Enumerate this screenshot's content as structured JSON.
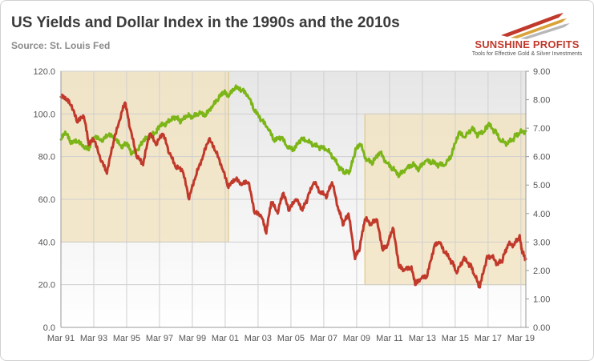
{
  "title": "US Yields and Dollar Index in the 1990s and the 2010s",
  "subtitle": "Source: St. Louis Fed",
  "logo": {
    "name": "SUNSHINE PROFITS",
    "tagline": "Tools for Effective Gold & Silver Investments"
  },
  "colors": {
    "dollar_index": "#7cb518",
    "yield_10y": "#c0392b",
    "highlight": "#f3e4c0",
    "grid": "#cfcfcf"
  },
  "chart_data": {
    "type": "line",
    "title": "US Yields and Dollar Index in the 1990s and the 2010s",
    "xlabel": "",
    "ylabel": "",
    "x_tick_labels": [
      "Mar 91",
      "Mar 93",
      "Mar 95",
      "Mar 97",
      "Mar 99",
      "Mar 01",
      "Mar 03",
      "Mar 05",
      "Mar 07",
      "Mar 09",
      "Mar 11",
      "Mar 13",
      "Mar 15",
      "Mar 17",
      "Mar 19"
    ],
    "x_range": [
      1991.0,
      2019.3
    ],
    "left_axis": {
      "ylim": [
        0,
        120
      ],
      "ticks": [
        "0.0",
        "20.0",
        "40.0",
        "60.0",
        "80.0",
        "100.0",
        "120.0"
      ]
    },
    "right_axis": {
      "ylim": [
        0,
        9
      ],
      "ticks": [
        "0.00",
        "1.00",
        "2.00",
        "3.00",
        "4.00",
        "5.00",
        "6.00",
        "7.00",
        "8.00",
        "9.00"
      ]
    },
    "grid": true,
    "legend": "none",
    "highlights": [
      {
        "x0": 1991.0,
        "x1": 2001.2,
        "y0_left": 40,
        "y1_left": 120
      },
      {
        "x0": 2009.5,
        "x1": 2019.3,
        "y0_left": 20,
        "y1_left": 100
      }
    ],
    "series": [
      {
        "key": "dollar_index",
        "axis": "left",
        "color": "#7cb518",
        "points": [
          [
            1991.0,
            88
          ],
          [
            1991.3,
            91
          ],
          [
            1991.6,
            86
          ],
          [
            1992.0,
            87
          ],
          [
            1992.4,
            84
          ],
          [
            1992.7,
            83
          ],
          [
            1993.0,
            89
          ],
          [
            1993.5,
            87
          ],
          [
            1993.9,
            90
          ],
          [
            1994.3,
            88
          ],
          [
            1994.7,
            84
          ],
          [
            1995.0,
            86
          ],
          [
            1995.3,
            81
          ],
          [
            1995.7,
            83
          ],
          [
            1996.0,
            87
          ],
          [
            1996.4,
            89
          ],
          [
            1996.8,
            91
          ],
          [
            1997.0,
            94
          ],
          [
            1997.4,
            95
          ],
          [
            1997.7,
            97
          ],
          [
            1998.0,
            98
          ],
          [
            1998.3,
            96
          ],
          [
            1998.7,
            99
          ],
          [
            1999.0,
            98
          ],
          [
            1999.4,
            100
          ],
          [
            1999.8,
            99
          ],
          [
            2000.2,
            103
          ],
          [
            2000.6,
            107
          ],
          [
            2000.9,
            110
          ],
          [
            2001.2,
            108
          ],
          [
            2001.6,
            112
          ],
          [
            2002.0,
            111
          ],
          [
            2002.4,
            108
          ],
          [
            2002.8,
            101
          ],
          [
            2003.2,
            97
          ],
          [
            2003.6,
            93
          ],
          [
            2004.0,
            87
          ],
          [
            2004.4,
            89
          ],
          [
            2004.8,
            84
          ],
          [
            2005.2,
            83
          ],
          [
            2005.6,
            88
          ],
          [
            2006.0,
            87
          ],
          [
            2006.4,
            85
          ],
          [
            2006.8,
            84
          ],
          [
            2007.2,
            83
          ],
          [
            2007.6,
            79
          ],
          [
            2008.0,
            74
          ],
          [
            2008.3,
            72
          ],
          [
            2008.6,
            73
          ],
          [
            2008.9,
            82
          ],
          [
            2009.2,
            86
          ],
          [
            2009.6,
            78
          ],
          [
            2010.0,
            77
          ],
          [
            2010.4,
            82
          ],
          [
            2010.8,
            77
          ],
          [
            2011.2,
            74
          ],
          [
            2011.6,
            71
          ],
          [
            2012.0,
            74
          ],
          [
            2012.4,
            76
          ],
          [
            2012.8,
            74
          ],
          [
            2013.2,
            78
          ],
          [
            2013.6,
            77
          ],
          [
            2014.0,
            76
          ],
          [
            2014.4,
            76
          ],
          [
            2014.8,
            81
          ],
          [
            2015.2,
            91
          ],
          [
            2015.6,
            89
          ],
          [
            2016.0,
            93
          ],
          [
            2016.4,
            90
          ],
          [
            2016.8,
            92
          ],
          [
            2017.0,
            95
          ],
          [
            2017.4,
            92
          ],
          [
            2017.8,
            87
          ],
          [
            2018.2,
            86
          ],
          [
            2018.6,
            89
          ],
          [
            2018.9,
            91
          ],
          [
            2019.3,
            92
          ]
        ]
      },
      {
        "key": "yield_10y",
        "axis": "right",
        "color": "#c0392b",
        "points": [
          [
            1991.0,
            8.1
          ],
          [
            1991.3,
            8.0
          ],
          [
            1991.6,
            7.8
          ],
          [
            1992.0,
            7.2
          ],
          [
            1992.4,
            7.4
          ],
          [
            1992.7,
            6.4
          ],
          [
            1993.0,
            6.6
          ],
          [
            1993.4,
            5.9
          ],
          [
            1993.8,
            5.4
          ],
          [
            1994.2,
            6.5
          ],
          [
            1994.6,
            7.3
          ],
          [
            1994.9,
            7.9
          ],
          [
            1995.2,
            7.0
          ],
          [
            1995.6,
            6.0
          ],
          [
            1996.0,
            5.7
          ],
          [
            1996.4,
            6.8
          ],
          [
            1996.8,
            6.4
          ],
          [
            1997.2,
            6.8
          ],
          [
            1997.6,
            6.1
          ],
          [
            1998.0,
            5.6
          ],
          [
            1998.4,
            5.5
          ],
          [
            1998.8,
            4.5
          ],
          [
            1999.2,
            5.3
          ],
          [
            1999.6,
            5.9
          ],
          [
            2000.0,
            6.6
          ],
          [
            2000.4,
            6.2
          ],
          [
            2000.8,
            5.6
          ],
          [
            2001.2,
            4.9
          ],
          [
            2001.6,
            5.2
          ],
          [
            2002.0,
            5.0
          ],
          [
            2002.4,
            5.1
          ],
          [
            2002.8,
            4.0
          ],
          [
            2003.2,
            3.9
          ],
          [
            2003.5,
            3.3
          ],
          [
            2003.8,
            4.4
          ],
          [
            2004.2,
            4.0
          ],
          [
            2004.5,
            4.7
          ],
          [
            2004.9,
            4.1
          ],
          [
            2005.3,
            4.5
          ],
          [
            2005.7,
            4.1
          ],
          [
            2006.0,
            4.5
          ],
          [
            2006.4,
            5.1
          ],
          [
            2006.8,
            4.7
          ],
          [
            2007.2,
            4.6
          ],
          [
            2007.5,
            5.1
          ],
          [
            2007.9,
            4.1
          ],
          [
            2008.2,
            3.6
          ],
          [
            2008.5,
            4.0
          ],
          [
            2008.9,
            2.4
          ],
          [
            2009.2,
            2.8
          ],
          [
            2009.5,
            3.8
          ],
          [
            2009.9,
            3.6
          ],
          [
            2010.2,
            3.8
          ],
          [
            2010.6,
            2.7
          ],
          [
            2010.9,
            2.9
          ],
          [
            2011.2,
            3.5
          ],
          [
            2011.6,
            2.1
          ],
          [
            2011.9,
            2.0
          ],
          [
            2012.3,
            2.1
          ],
          [
            2012.6,
            1.5
          ],
          [
            2012.9,
            1.7
          ],
          [
            2013.3,
            1.8
          ],
          [
            2013.7,
            2.8
          ],
          [
            2014.0,
            3.0
          ],
          [
            2014.4,
            2.6
          ],
          [
            2014.8,
            2.3
          ],
          [
            2015.1,
            1.9
          ],
          [
            2015.5,
            2.4
          ],
          [
            2015.9,
            2.2
          ],
          [
            2016.2,
            1.8
          ],
          [
            2016.5,
            1.4
          ],
          [
            2016.9,
            2.4
          ],
          [
            2017.2,
            2.5
          ],
          [
            2017.6,
            2.2
          ],
          [
            2017.9,
            2.4
          ],
          [
            2018.2,
            2.9
          ],
          [
            2018.6,
            2.9
          ],
          [
            2018.9,
            3.2
          ],
          [
            2019.1,
            2.6
          ],
          [
            2019.3,
            2.4
          ]
        ]
      }
    ]
  }
}
